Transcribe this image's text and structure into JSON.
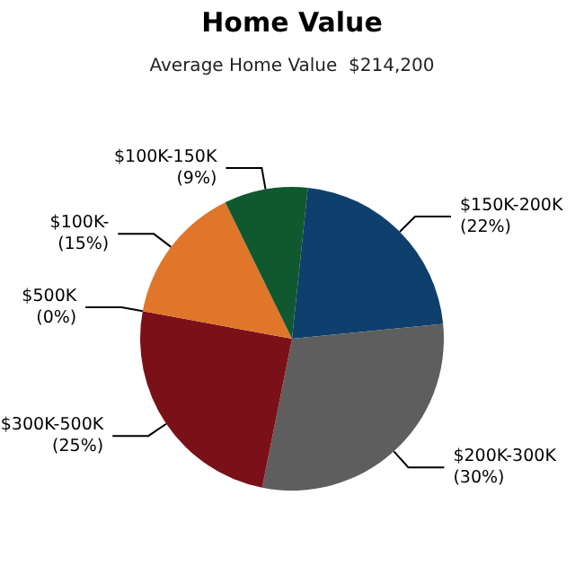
{
  "chart_data": {
    "type": "pie",
    "title": "Home Value",
    "subtitle": "Average Home Value  $214,200",
    "categories": [
      "$150K-200K",
      "$200K-300K",
      "$300K-500K",
      "$500K",
      "$100K-",
      "$100K-150K"
    ],
    "values": [
      22,
      30,
      25,
      0,
      15,
      9
    ],
    "value_labels": [
      "(22%)",
      "(30%)",
      "(25%)",
      "(0%)",
      "(15%)",
      "(9%)"
    ],
    "colors": [
      "#0e3f6d",
      "#5e5e5e",
      "#7b1118",
      "#b0b0b0",
      "#e0762a",
      "#10582f"
    ],
    "legend": false
  }
}
